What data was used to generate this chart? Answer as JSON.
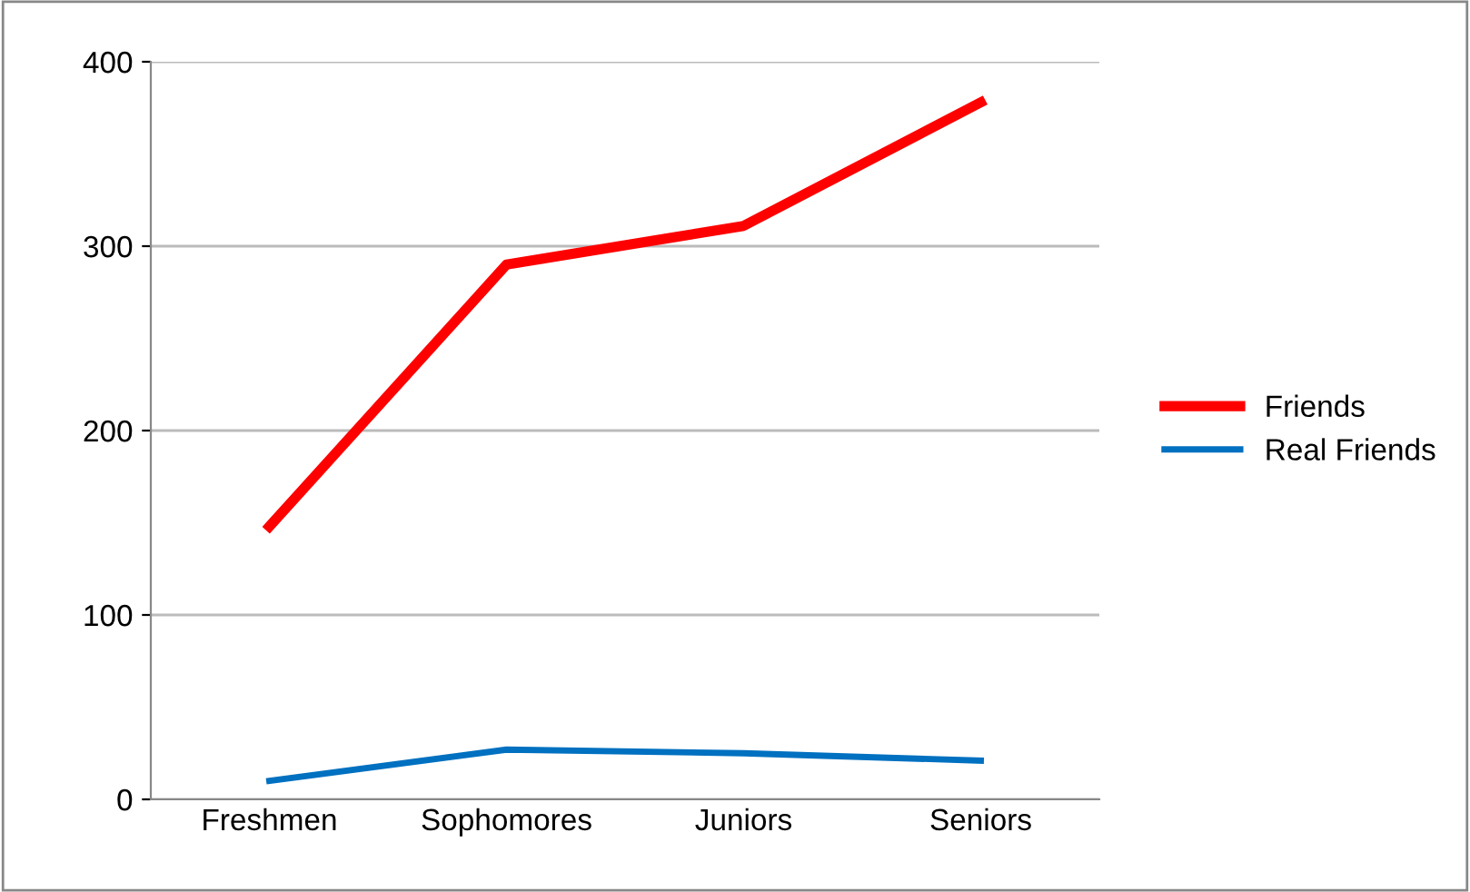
{
  "chart_data": {
    "type": "line",
    "categories": [
      "Freshmen",
      "Sophomores",
      "Juniors",
      "Seniors"
    ],
    "series": [
      {
        "name": "Friends",
        "color": "#ff0000",
        "values": [
          148,
          290,
          311,
          378
        ]
      },
      {
        "name": "Real Friends",
        "color": "#0070c0",
        "values": [
          10,
          27,
          25,
          21
        ]
      }
    ],
    "ylim": [
      0,
      400
    ],
    "yticks": [
      0,
      100,
      200,
      300,
      400
    ],
    "grid": "y",
    "legend": "right",
    "marker": "none",
    "line_style": "solid"
  }
}
